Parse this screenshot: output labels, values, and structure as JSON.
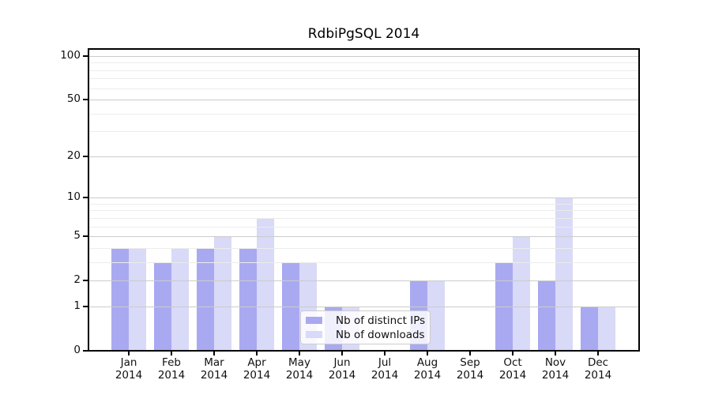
{
  "chart_data": {
    "type": "bar",
    "title": "RdbiPgSQL 2014",
    "categories": [
      "Jan",
      "Feb",
      "Mar",
      "Apr",
      "May",
      "Jun",
      "Jul",
      "Aug",
      "Sep",
      "Oct",
      "Nov",
      "Dec"
    ],
    "year": "2014",
    "series": [
      {
        "name": "Nb of distinct IPs",
        "color": "#a9a9f1",
        "values": [
          4,
          3,
          4,
          4,
          3,
          1,
          0,
          2,
          0,
          3,
          2,
          1
        ]
      },
      {
        "name": "Nb of downloads",
        "color": "#d9d9f8",
        "values": [
          4,
          4,
          5,
          7,
          3,
          1,
          0,
          2,
          0,
          5,
          10,
          1
        ]
      }
    ],
    "y_scale": "log1p",
    "ylim": [
      0,
      112
    ],
    "y_major_ticks": [
      0,
      1,
      2,
      5,
      10,
      20,
      50,
      100
    ],
    "y_minor_gridlines": [
      3,
      4,
      6,
      7,
      8,
      9,
      30,
      40,
      60,
      70,
      80,
      90
    ],
    "grid": true,
    "legend_position": "inside-bottom-center",
    "axis_color": "#000000",
    "major_grid_color": "#cccccc",
    "minor_grid_color": "#ececec"
  }
}
